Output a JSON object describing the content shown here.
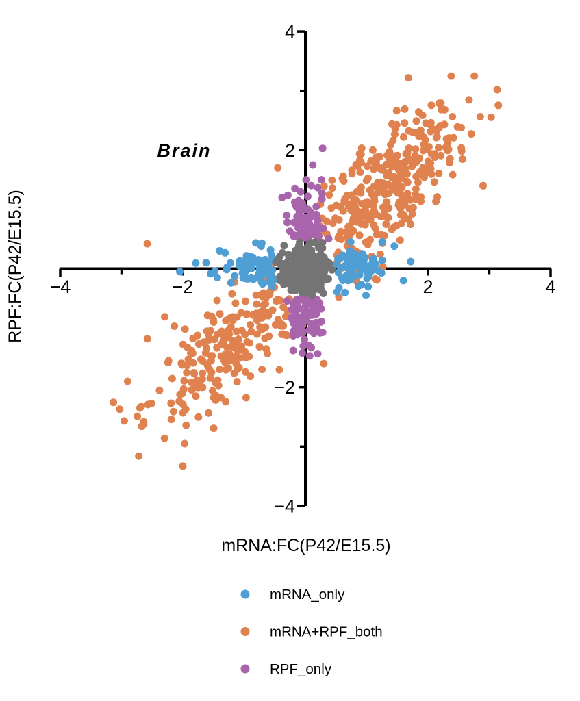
{
  "chart_data": {
    "type": "scatter",
    "title": "Brain",
    "xlabel": "mRNA:FC(P42/E15.5)",
    "ylabel": "RPF:FC(P42/E15.5)",
    "background_color": "#ffffff",
    "axes": {
      "style": "centered-cross",
      "color": "#000000",
      "xlim": [
        -4,
        4
      ],
      "ylim": [
        -4,
        4
      ],
      "x_major_ticks": [
        -4,
        -2,
        2,
        4
      ],
      "x_minor_ticks": [
        -3,
        -1,
        1,
        3
      ],
      "y_major_ticks": [
        -4,
        -2,
        2,
        4
      ],
      "y_minor_ticks": [
        -3,
        -1,
        1,
        3
      ],
      "minus_glyph": "−",
      "grid": false
    },
    "legend": {
      "position": "bottom",
      "labels": [
        "mRNA_only",
        "mRNA+RPF_both",
        "RPF_only"
      ]
    },
    "point_style": "filled-circle",
    "seed": 20,
    "series": [
      {
        "name": "mRNA_only",
        "color": "#4F9FD5",
        "in_legend": true,
        "z_order": 1,
        "count": 150,
        "distribution": {
          "kind": "horizontal_band",
          "offset_min": 0.5,
          "offset_sd": 0.42,
          "x_max": 1.85,
          "y_sd": 0.17,
          "y_max": 0.45
        },
        "extra_points": [
          [
            -2.05,
            -0.05
          ],
          [
            -1.62,
            0.1
          ],
          [
            -1.4,
            0.3
          ],
          [
            1.72,
            0.12
          ],
          [
            1.6,
            -0.2
          ],
          [
            1.45,
            0.38
          ]
        ]
      },
      {
        "name": "mRNA+RPF_both",
        "color": "#E0824F",
        "in_legend": true,
        "z_order": 0,
        "count": 560,
        "distribution": {
          "kind": "diagonal_bimodal",
          "lobes": [
            {
              "weight": 0.54,
              "mean": 1.35,
              "sd": 0.6
            },
            {
              "weight": 0.46,
              "mean": -1.3,
              "sd": 0.58
            }
          ],
          "jitter": [
            0.3,
            0.38
          ],
          "exclude_center": 0.5,
          "clip_x": [
            -3.15,
            3.2
          ],
          "clip_y": [
            -3.45,
            3.25
          ]
        },
        "extra_points": [
          [
            1.68,
            3.22
          ],
          [
            3.13,
            3.02
          ],
          [
            2.9,
            1.4
          ],
          [
            -2.0,
            -3.33
          ],
          [
            -1.97,
            -2.95
          ],
          [
            -2.3,
            -2.86
          ],
          [
            -2.7,
            -2.35
          ],
          [
            -3.03,
            -2.37
          ],
          [
            -2.58,
            0.42
          ],
          [
            -0.45,
            1.7
          ],
          [
            0.3,
            -1.6
          ],
          [
            -2.9,
            -1.9
          ]
        ]
      },
      {
        "name": "RPF_only",
        "color": "#A865AC",
        "in_legend": true,
        "z_order": 2,
        "count": 145,
        "distribution": {
          "kind": "vertical_band",
          "pos_weight": 0.58,
          "offset_min": 0.5,
          "offset_sd": 0.45,
          "y_max_pos": 1.9,
          "y_max_neg": 1.55,
          "x_sd": 0.15,
          "x_max": 0.38
        },
        "extra_points": [
          [
            0.28,
            2.03
          ],
          [
            0.12,
            1.75
          ],
          [
            0.01,
            1.5
          ],
          [
            0.26,
            1.5
          ],
          [
            0.07,
            -1.47
          ],
          [
            -0.2,
            -1.38
          ]
        ]
      },
      {
        "name": "gray_center",
        "color": "#747474",
        "in_legend": false,
        "z_order": 3,
        "count": 230,
        "distribution": {
          "kind": "center_blob",
          "sd": 0.21,
          "clip": 0.5
        },
        "extra_points": []
      }
    ]
  }
}
